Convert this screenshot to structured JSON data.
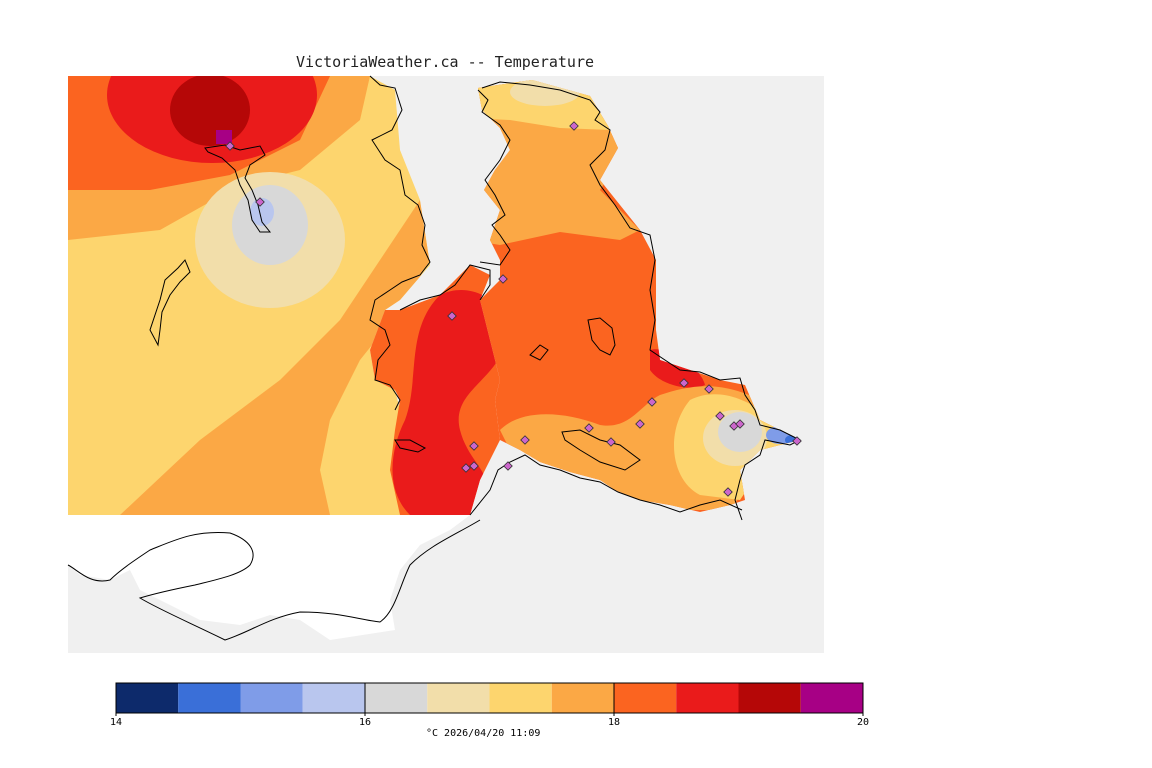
{
  "title": "VictoriaWeather.ca -- Temperature",
  "footer": {
    "unit": "°C",
    "timestamp": "2026/04/20 11:09",
    "text": "°C  2026/04/20 11:09"
  },
  "colorbar": {
    "min": 14,
    "max": 20,
    "tick_labels": [
      "14",
      "16",
      "18",
      "20"
    ],
    "bands": [
      {
        "from": 14.0,
        "to": 14.5,
        "color": "#0d2a6b"
      },
      {
        "from": 14.5,
        "to": 15.0,
        "color": "#3a6fd8"
      },
      {
        "from": 15.0,
        "to": 15.5,
        "color": "#7f9ce8"
      },
      {
        "from": 15.5,
        "to": 16.0,
        "color": "#b9c6ee"
      },
      {
        "from": 16.0,
        "to": 16.5,
        "color": "#d8d8d8"
      },
      {
        "from": 16.5,
        "to": 17.0,
        "color": "#f2deaa"
      },
      {
        "from": 17.0,
        "to": 17.5,
        "color": "#fdd56e"
      },
      {
        "from": 17.5,
        "to": 18.0,
        "color": "#fba845"
      },
      {
        "from": 18.0,
        "to": 18.5,
        "color": "#fb6420"
      },
      {
        "from": 18.5,
        "to": 19.0,
        "color": "#ea1b1b"
      },
      {
        "from": 19.0,
        "to": 19.5,
        "color": "#b50707"
      },
      {
        "from": 19.5,
        "to": 20.0,
        "color": "#a70085"
      }
    ]
  },
  "map_colors": {
    "water": "#f0f0f0",
    "coastline": "#000000",
    "outside_domain_land": "#ffffff",
    "station_marker": "#cc66cc"
  }
}
